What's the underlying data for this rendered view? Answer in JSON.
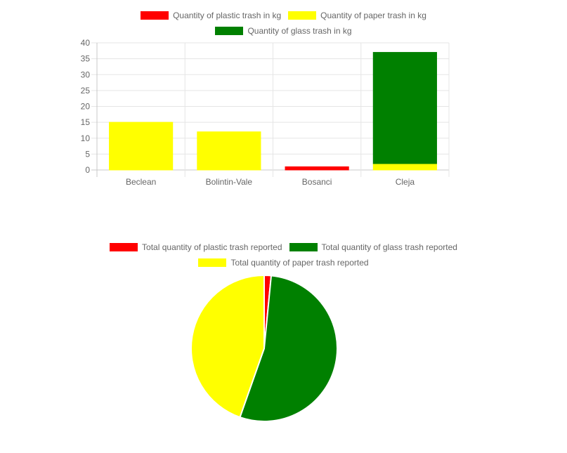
{
  "chart_data": [
    {
      "type": "bar",
      "stacked": true,
      "categories": [
        "Beclean",
        "Bolintin-Vale",
        "Bosanci",
        "Cleja"
      ],
      "series": [
        {
          "name": "Quantity of plastic trash in kg",
          "color": "#ff0000",
          "values": [
            0,
            0,
            1,
            0
          ]
        },
        {
          "name": "Quantity of paper trash in kg",
          "color": "#ffff00",
          "values": [
            15,
            12,
            0,
            2
          ]
        },
        {
          "name": "Quantity of glass trash in kg",
          "color": "#008000",
          "values": [
            0,
            0,
            0,
            35
          ]
        }
      ],
      "yticks": [
        "0",
        "5",
        "10",
        "15",
        "20",
        "25",
        "30",
        "35",
        "40"
      ],
      "ylim": [
        0,
        40
      ],
      "grid": true,
      "legend": "top"
    },
    {
      "type": "pie",
      "labels": [
        "Total quantity of plastic trash reported",
        "Total quantity of glass trash reported",
        "Total quantity of paper trash reported"
      ],
      "values": [
        1,
        35,
        29
      ],
      "colors": [
        "#ff0000",
        "#008000",
        "#ffff00"
      ],
      "legend": "top"
    }
  ]
}
